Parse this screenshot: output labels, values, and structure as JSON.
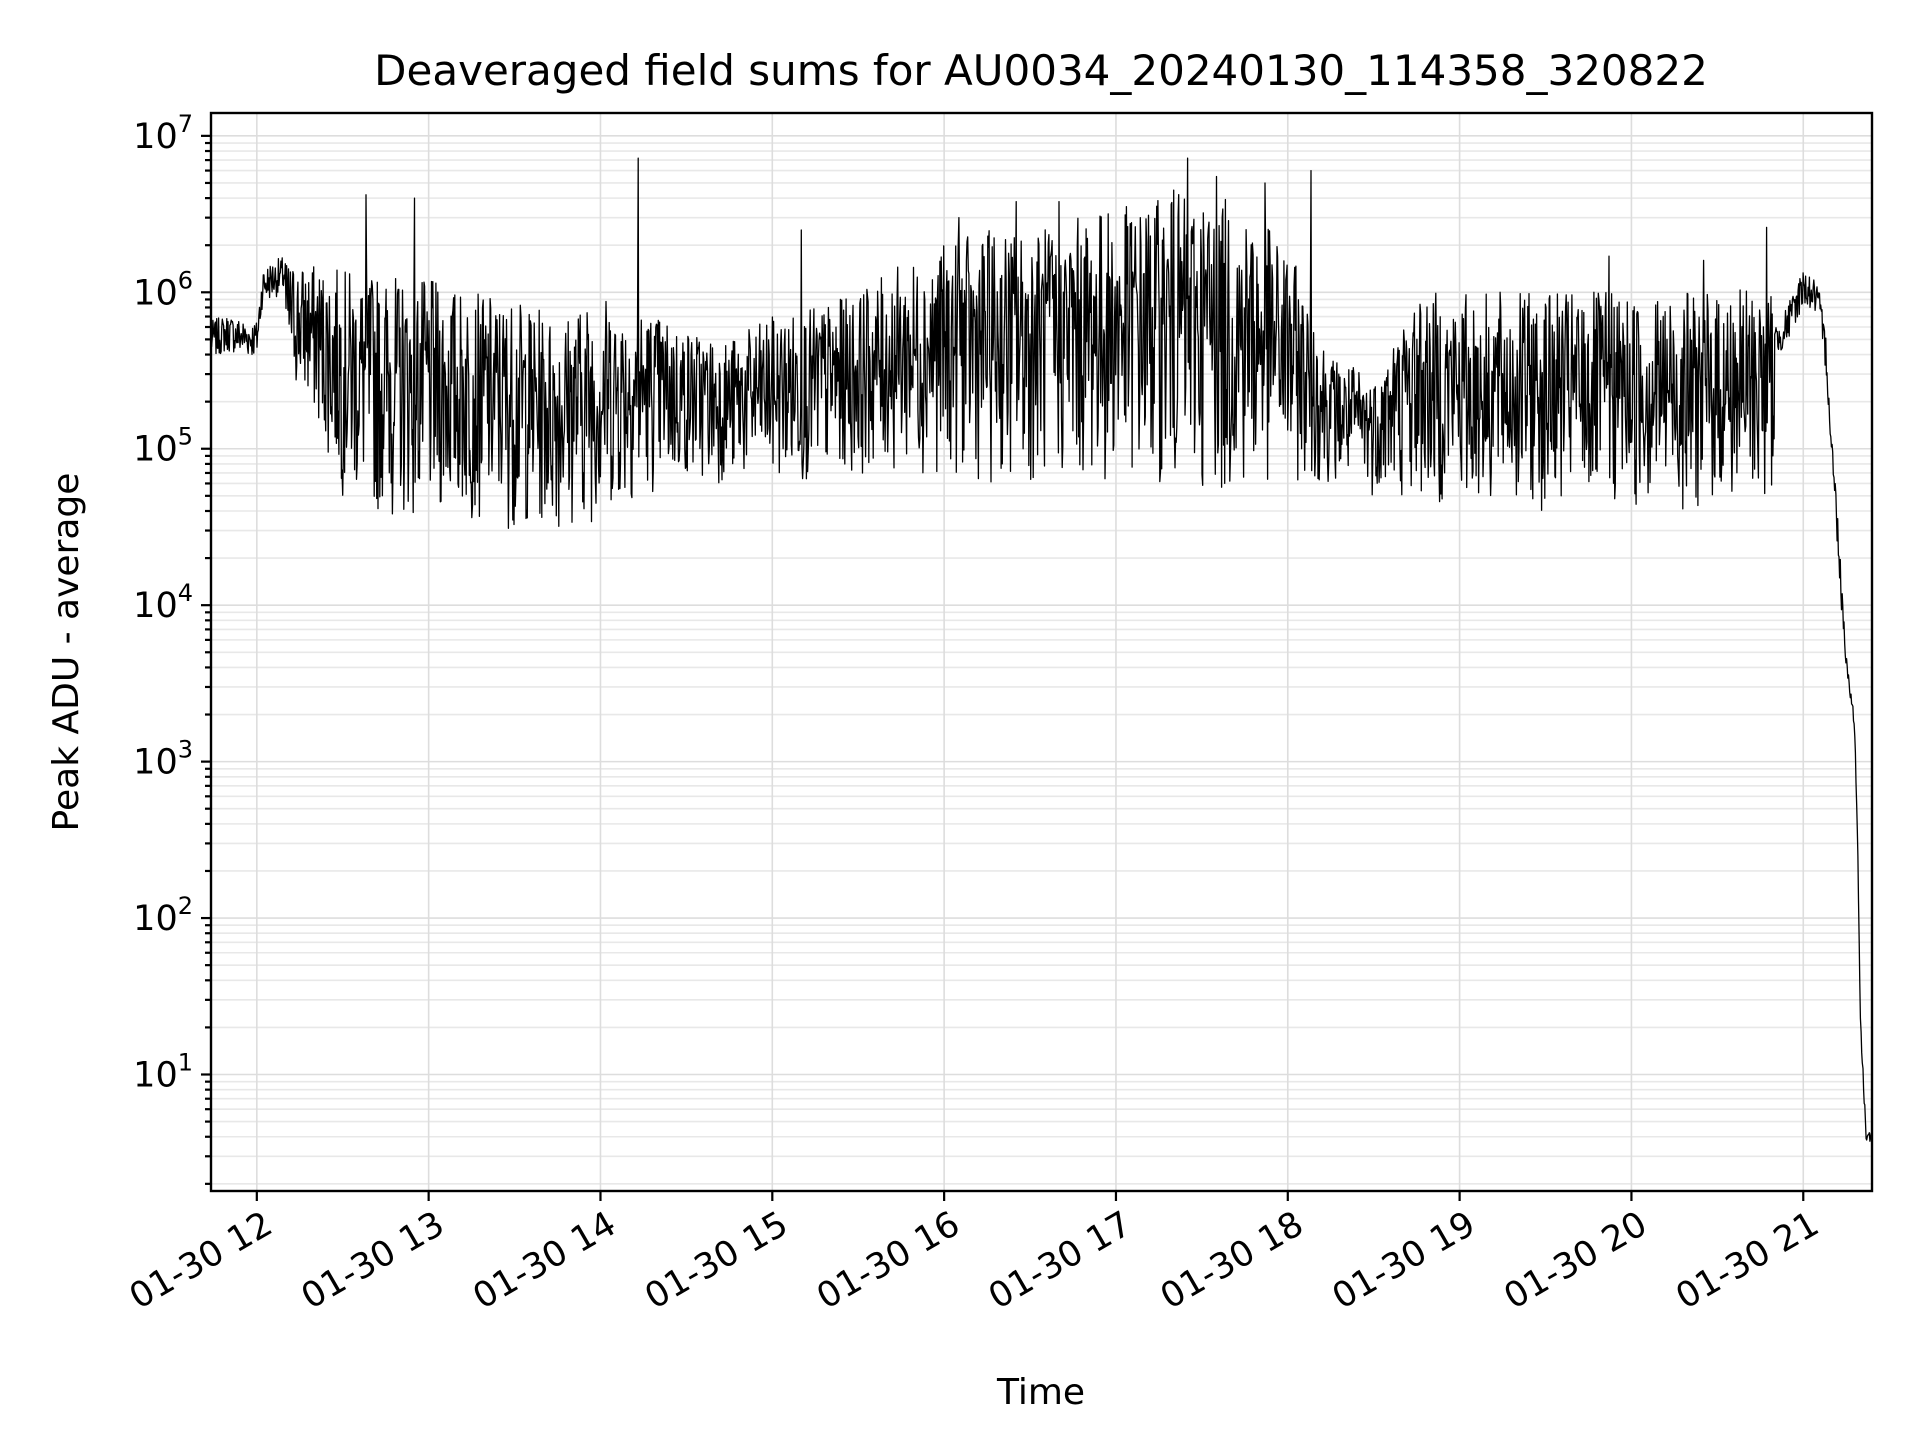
{
  "chart_data": {
    "type": "line",
    "title": "Deaveraged field sums for AU0034_20240130_114358_320822",
    "xlabel": "Time",
    "ylabel": "Peak ADU - average",
    "xscale": "time",
    "yscale": "log",
    "xlim": [
      "2024-01-30 11:44",
      "2024-01-30 21:24"
    ],
    "ylim": [
      1.8,
      14000000
    ],
    "grid": true,
    "grid_minor": true,
    "legend": "none",
    "line_color": "#000000",
    "x_ticks": [
      {
        "value": "2024-01-30 12:00",
        "label": "01-30 12"
      },
      {
        "value": "2024-01-30 13:00",
        "label": "01-30 13"
      },
      {
        "value": "2024-01-30 14:00",
        "label": "01-30 14"
      },
      {
        "value": "2024-01-30 15:00",
        "label": "01-30 15"
      },
      {
        "value": "2024-01-30 16:00",
        "label": "01-30 16"
      },
      {
        "value": "2024-01-30 17:00",
        "label": "01-30 17"
      },
      {
        "value": "2024-01-30 18:00",
        "label": "01-30 18"
      },
      {
        "value": "2024-01-30 19:00",
        "label": "01-30 19"
      },
      {
        "value": "2024-01-30 20:00",
        "label": "01-30 20"
      },
      {
        "value": "2024-01-30 21:00",
        "label": "01-30 21"
      }
    ],
    "y_ticks": [
      {
        "value": 10,
        "base": "10",
        "exp": "1"
      },
      {
        "value": 100,
        "base": "10",
        "exp": "2"
      },
      {
        "value": 1000,
        "base": "10",
        "exp": "3"
      },
      {
        "value": 10000,
        "base": "10",
        "exp": "4"
      },
      {
        "value": 100000,
        "base": "10",
        "exp": "5"
      },
      {
        "value": 1000000,
        "base": "10",
        "exp": "6"
      },
      {
        "value": 10000000,
        "base": "10",
        "exp": "7"
      }
    ],
    "series": [
      {
        "color": "#000000",
        "x": [
          "2024-01-30 11:44",
          "2024-01-30 11:50",
          "2024-01-30 11:55",
          "2024-01-30 12:00",
          "2024-01-30 12:02",
          "2024-01-30 12:05",
          "2024-01-30 12:10",
          "2024-01-30 12:15",
          "2024-01-30 12:20",
          "2024-01-30 12:30",
          "2024-01-30 12:40",
          "2024-01-30 12:50",
          "2024-01-30 13:00",
          "2024-01-30 13:15",
          "2024-01-30 13:30",
          "2024-01-30 13:45",
          "2024-01-30 14:00",
          "2024-01-30 14:15",
          "2024-01-30 14:30",
          "2024-01-30 14:45",
          "2024-01-30 15:00",
          "2024-01-30 15:15",
          "2024-01-30 15:30",
          "2024-01-30 15:45",
          "2024-01-30 16:00",
          "2024-01-30 16:15",
          "2024-01-30 16:30",
          "2024-01-30 16:45",
          "2024-01-30 17:00",
          "2024-01-30 17:15",
          "2024-01-30 17:30",
          "2024-01-30 17:45",
          "2024-01-30 18:00",
          "2024-01-30 18:15",
          "2024-01-30 18:30",
          "2024-01-30 18:45",
          "2024-01-30 19:00",
          "2024-01-30 19:15",
          "2024-01-30 19:30",
          "2024-01-30 19:45",
          "2024-01-30 20:00",
          "2024-01-30 20:15",
          "2024-01-30 20:30",
          "2024-01-30 20:45",
          "2024-01-30 20:55",
          "2024-01-30 21:00",
          "2024-01-30 21:05",
          "2024-01-30 21:08",
          "2024-01-30 21:10",
          "2024-01-30 21:12",
          "2024-01-30 21:14",
          "2024-01-30 21:16",
          "2024-01-30 21:17",
          "2024-01-30 21:18",
          "2024-01-30 21:19",
          "2024-01-30 21:20",
          "2024-01-30 21:22",
          "2024-01-30 21:24"
        ],
        "y": [
          500000,
          550000,
          520000,
          500000,
          1100000,
          1200000,
          1300000,
          1000000,
          900000,
          600000,
          400000,
          300000,
          250000,
          150000,
          120000,
          100000,
          120000,
          150000,
          180000,
          200000,
          230000,
          200000,
          180000,
          250000,
          350000,
          500000,
          400000,
          500000,
          600000,
          800000,
          1000000,
          900000,
          700000,
          150000,
          110000,
          150000,
          200000,
          220000,
          250000,
          250000,
          250000,
          250000,
          250000,
          350000,
          650000,
          1100000,
          900000,
          400000,
          100000,
          30000,
          8000,
          3000,
          2500,
          1500,
          300,
          20,
          4,
          4
        ],
        "envelope_x": [
          "2024-01-30 12:10",
          "2024-01-30 12:20",
          "2024-01-30 12:30",
          "2024-01-30 12:45",
          "2024-01-30 13:00",
          "2024-01-30 13:15",
          "2024-01-30 13:30",
          "2024-01-30 13:45",
          "2024-01-30 14:00",
          "2024-01-30 14:15",
          "2024-01-30 14:30",
          "2024-01-30 14:45",
          "2024-01-30 15:00",
          "2024-01-30 15:15",
          "2024-01-30 15:30",
          "2024-01-30 15:45",
          "2024-01-30 16:00",
          "2024-01-30 16:15",
          "2024-01-30 16:30",
          "2024-01-30 16:45",
          "2024-01-30 17:00",
          "2024-01-30 17:15",
          "2024-01-30 17:30",
          "2024-01-30 17:45",
          "2024-01-30 18:00",
          "2024-01-30 18:15",
          "2024-01-30 18:30",
          "2024-01-30 18:45",
          "2024-01-30 19:00",
          "2024-01-30 19:15",
          "2024-01-30 19:30",
          "2024-01-30 19:45",
          "2024-01-30 20:00",
          "2024-01-30 20:15",
          "2024-01-30 20:30",
          "2024-01-30 20:45",
          "2024-01-30 20:50"
        ],
        "envelope_low": [
          300000,
          150000,
          50000,
          35000,
          35000,
          35000,
          30000,
          30000,
          35000,
          50000,
          60000,
          60000,
          60000,
          60000,
          70000,
          70000,
          70000,
          60000,
          60000,
          60000,
          60000,
          60000,
          50000,
          50000,
          60000,
          60000,
          50000,
          45000,
          40000,
          40000,
          40000,
          40000,
          40000,
          40000,
          40000,
          45000,
          50000
        ],
        "envelope_high": [
          1600000,
          1500000,
          1400000,
          1300000,
          1200000,
          1000000,
          900000,
          700000,
          1000000,
          800000,
          600000,
          500000,
          700000,
          800000,
          1000000,
          1500000,
          2000000,
          2500000,
          2500000,
          3000000,
          3500000,
          4000000,
          4500000,
          3500000,
          2000000,
          400000,
          300000,
          1000000,
          1000000,
          1000000,
          1000000,
          1000000,
          1000000,
          1000000,
          1000000,
          1100000,
          1000000
        ],
        "spikes": [
          {
            "x": "2024-01-30 12:38",
            "y": 4200000
          },
          {
            "x": "2024-01-30 12:55",
            "y": 4000000
          },
          {
            "x": "2024-01-30 14:13",
            "y": 7200000
          },
          {
            "x": "2024-01-30 15:10",
            "y": 2500000
          },
          {
            "x": "2024-01-30 16:05",
            "y": 3000000
          },
          {
            "x": "2024-01-30 16:25",
            "y": 3800000
          },
          {
            "x": "2024-01-30 16:40",
            "y": 3800000
          },
          {
            "x": "2024-01-30 17:20",
            "y": 4500000
          },
          {
            "x": "2024-01-30 17:25",
            "y": 7200000
          },
          {
            "x": "2024-01-30 17:35",
            "y": 5500000
          },
          {
            "x": "2024-01-30 17:52",
            "y": 5000000
          },
          {
            "x": "2024-01-30 18:08",
            "y": 6000000
          },
          {
            "x": "2024-01-30 19:52",
            "y": 1700000
          },
          {
            "x": "2024-01-30 20:25",
            "y": 1600000
          },
          {
            "x": "2024-01-30 20:47",
            "y": 2600000
          }
        ]
      }
    ]
  }
}
